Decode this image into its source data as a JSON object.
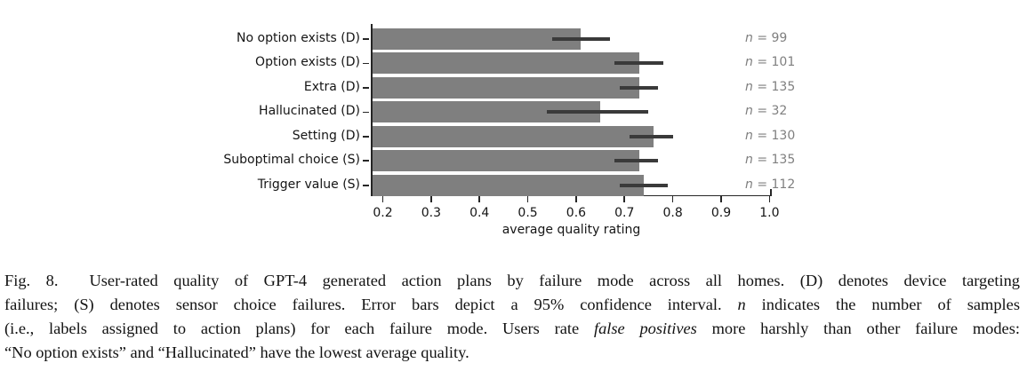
{
  "figure": {
    "caption_lines": [
      [
        {
          "text": "Fig. 8.  User-rated quality of GPT-4 generated action plans by failure mode across all homes. (D) denotes device targeting",
          "italic": false
        }
      ],
      [
        {
          "text": "failures; (S) denotes sensor choice failures. Error bars depict a 95% confidence interval. ",
          "italic": false
        },
        {
          "text": "n",
          "italic": true
        },
        {
          "text": " indicates the number of samples",
          "italic": false
        }
      ],
      [
        {
          "text": "(i.e., labels assigned to action plans) for each failure mode. Users rate ",
          "italic": false
        },
        {
          "text": "false positives",
          "italic": true
        },
        {
          "text": " more harshly than other failure modes:",
          "italic": false
        }
      ],
      [
        {
          "text": "“No option exists” and “Hallucinated” have the lowest average quality.",
          "italic": false
        }
      ]
    ]
  },
  "chart_data": {
    "type": "bar",
    "orientation": "horizontal",
    "title": "",
    "xlabel": "average quality rating",
    "ylabel": "",
    "categories": [
      "No option exists (D)",
      "Option exists (D)",
      "Extra (D)",
      "Hallucinated (D)",
      "Setting (D)",
      "Suboptimal choice (S)",
      "Trigger value (S)"
    ],
    "values": [
      0.61,
      0.73,
      0.73,
      0.65,
      0.76,
      0.73,
      0.74
    ],
    "ci_low": [
      0.55,
      0.68,
      0.69,
      0.54,
      0.71,
      0.68,
      0.69
    ],
    "ci_high": [
      0.67,
      0.78,
      0.77,
      0.75,
      0.8,
      0.77,
      0.79
    ],
    "n_prefix": "n",
    "n_values": [
      99,
      101,
      135,
      32,
      130,
      135,
      112
    ],
    "xticks": [
      0.2,
      0.3,
      0.4,
      0.5,
      0.6,
      0.7,
      0.8,
      0.9,
      1.0
    ],
    "xtick_labels": [
      "0.2",
      "0.3",
      "0.4",
      "0.5",
      "0.6",
      "0.7",
      "0.8",
      "0.9",
      "1.0"
    ],
    "xlim": [
      0.177,
      1.003
    ],
    "grid": false,
    "legend": "none",
    "colors": {
      "bar": "#7f7f7f",
      "error_bar": "#3a3a3a",
      "n_label": "#7f7f7f",
      "axis": "#262626"
    }
  }
}
